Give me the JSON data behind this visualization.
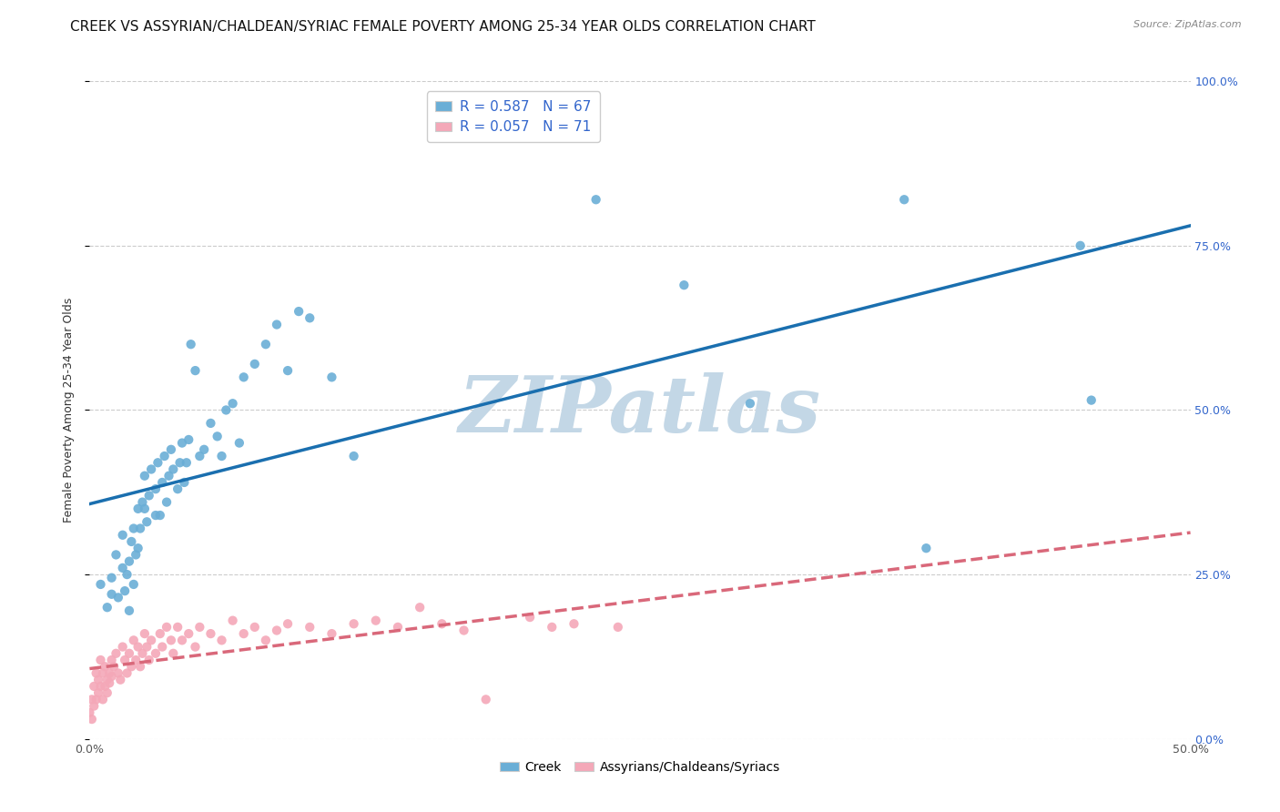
{
  "title": "CREEK VS ASSYRIAN/CHALDEAN/SYRIAC FEMALE POVERTY AMONG 25-34 YEAR OLDS CORRELATION CHART",
  "source": "Source: ZipAtlas.com",
  "ylabel": "Female Poverty Among 25-34 Year Olds",
  "xlim": [
    0.0,
    0.5
  ],
  "ylim": [
    0.0,
    1.0
  ],
  "xticks": [
    0.0,
    0.1,
    0.2,
    0.3,
    0.4,
    0.5
  ],
  "yticks": [
    0.0,
    0.25,
    0.5,
    0.75,
    1.0
  ],
  "xticklabels": [
    "0.0%",
    "",
    "",
    "",
    "",
    "50.0%"
  ],
  "yticklabels": [
    "",
    "",
    "",
    "",
    ""
  ],
  "right_yticklabels": [
    "0.0%",
    "25.0%",
    "50.0%",
    "75.0%",
    "100.0%"
  ],
  "creek_R": 0.587,
  "creek_N": 67,
  "acs_R": 0.057,
  "acs_N": 71,
  "creek_color": "#6aaed6",
  "acs_color": "#f4a8b8",
  "creek_line_color": "#1a6faf",
  "acs_line_color": "#d9687a",
  "watermark": "ZIPatlas",
  "watermark_color_r": 195,
  "watermark_color_g": 215,
  "watermark_color_b": 230,
  "background_color": "#ffffff",
  "creek_x": [
    0.005,
    0.008,
    0.01,
    0.01,
    0.012,
    0.013,
    0.015,
    0.015,
    0.016,
    0.017,
    0.018,
    0.018,
    0.019,
    0.02,
    0.02,
    0.021,
    0.022,
    0.022,
    0.023,
    0.024,
    0.025,
    0.025,
    0.026,
    0.027,
    0.028,
    0.03,
    0.03,
    0.031,
    0.032,
    0.033,
    0.034,
    0.035,
    0.036,
    0.037,
    0.038,
    0.04,
    0.041,
    0.042,
    0.043,
    0.044,
    0.045,
    0.046,
    0.048,
    0.05,
    0.052,
    0.055,
    0.058,
    0.06,
    0.062,
    0.065,
    0.068,
    0.07,
    0.075,
    0.08,
    0.085,
    0.09,
    0.095,
    0.1,
    0.11,
    0.12,
    0.23,
    0.27,
    0.3,
    0.37,
    0.38,
    0.45,
    0.455
  ],
  "creek_y": [
    0.235,
    0.2,
    0.22,
    0.245,
    0.28,
    0.215,
    0.31,
    0.26,
    0.225,
    0.25,
    0.195,
    0.27,
    0.3,
    0.235,
    0.32,
    0.28,
    0.35,
    0.29,
    0.32,
    0.36,
    0.35,
    0.4,
    0.33,
    0.37,
    0.41,
    0.34,
    0.38,
    0.42,
    0.34,
    0.39,
    0.43,
    0.36,
    0.4,
    0.44,
    0.41,
    0.38,
    0.42,
    0.45,
    0.39,
    0.42,
    0.455,
    0.6,
    0.56,
    0.43,
    0.44,
    0.48,
    0.46,
    0.43,
    0.5,
    0.51,
    0.45,
    0.55,
    0.57,
    0.6,
    0.63,
    0.56,
    0.65,
    0.64,
    0.55,
    0.43,
    0.82,
    0.69,
    0.51,
    0.82,
    0.29,
    0.75,
    0.515
  ],
  "acs_x": [
    0.0,
    0.001,
    0.001,
    0.002,
    0.002,
    0.003,
    0.003,
    0.004,
    0.004,
    0.005,
    0.005,
    0.006,
    0.006,
    0.007,
    0.007,
    0.008,
    0.008,
    0.009,
    0.009,
    0.01,
    0.01,
    0.011,
    0.012,
    0.013,
    0.014,
    0.015,
    0.016,
    0.017,
    0.018,
    0.019,
    0.02,
    0.021,
    0.022,
    0.023,
    0.024,
    0.025,
    0.026,
    0.027,
    0.028,
    0.03,
    0.032,
    0.033,
    0.035,
    0.037,
    0.038,
    0.04,
    0.042,
    0.045,
    0.048,
    0.05,
    0.055,
    0.06,
    0.065,
    0.07,
    0.075,
    0.08,
    0.085,
    0.09,
    0.1,
    0.11,
    0.12,
    0.13,
    0.14,
    0.15,
    0.16,
    0.17,
    0.18,
    0.2,
    0.21,
    0.22,
    0.24
  ],
  "acs_y": [
    0.04,
    0.06,
    0.03,
    0.08,
    0.05,
    0.1,
    0.06,
    0.09,
    0.07,
    0.12,
    0.08,
    0.1,
    0.06,
    0.08,
    0.11,
    0.09,
    0.07,
    0.1,
    0.085,
    0.12,
    0.095,
    0.11,
    0.13,
    0.1,
    0.09,
    0.14,
    0.12,
    0.1,
    0.13,
    0.11,
    0.15,
    0.12,
    0.14,
    0.11,
    0.13,
    0.16,
    0.14,
    0.12,
    0.15,
    0.13,
    0.16,
    0.14,
    0.17,
    0.15,
    0.13,
    0.17,
    0.15,
    0.16,
    0.14,
    0.17,
    0.16,
    0.15,
    0.18,
    0.16,
    0.17,
    0.15,
    0.165,
    0.175,
    0.17,
    0.16,
    0.175,
    0.18,
    0.17,
    0.2,
    0.175,
    0.165,
    0.06,
    0.185,
    0.17,
    0.175,
    0.17
  ],
  "title_fontsize": 11,
  "axis_fontsize": 9,
  "legend_fontsize": 11,
  "source_fontsize": 8
}
